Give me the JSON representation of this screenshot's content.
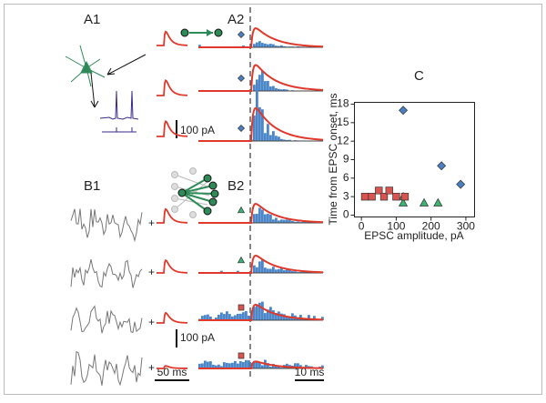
{
  "figure": {
    "panel_labels": [
      "A1",
      "A2",
      "B1",
      "B2"
    ],
    "scale_bars": {
      "a_current": "100 pA",
      "b_current": "100 pA",
      "time_left": "50 ms",
      "time_right": "10 ms"
    },
    "plus_signs": [
      "+",
      "+",
      "+",
      "+"
    ]
  },
  "chart_data": {
    "type": "scatter",
    "panel_label": "C",
    "x_label": "EPSC amplitude, pA",
    "y_label": "Time from EPSC onset, ms",
    "xlim": [
      -20,
      325
    ],
    "ylim": [
      -0.3,
      18.3
    ],
    "xticks": [
      0,
      100,
      200,
      300
    ],
    "yticks": [
      0,
      3,
      6,
      9,
      12,
      15,
      18
    ],
    "series": [
      {
        "color": "#4a7fc1",
        "marker": "diamond",
        "x": [
          120,
          230,
          285
        ],
        "values": [
          17,
          8,
          5
        ]
      },
      {
        "color": "#3cb371",
        "marker": "triangle",
        "x": [
          120,
          120,
          180,
          220
        ],
        "values": [
          3,
          2,
          2,
          2
        ]
      },
      {
        "color": "#d9534f",
        "marker": "square",
        "x": [
          10,
          30,
          50,
          65,
          80,
          100,
          125
        ],
        "values": [
          3,
          3,
          4,
          3,
          4,
          3,
          3
        ]
      }
    ]
  }
}
